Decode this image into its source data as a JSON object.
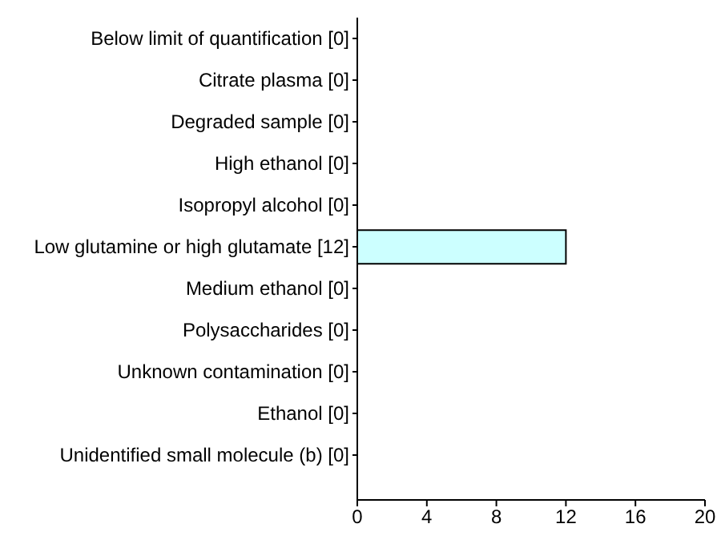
{
  "chart_data": {
    "type": "bar",
    "orientation": "horizontal",
    "categories": [
      "Below limit of quantification [0]",
      "Citrate plasma [0]",
      "Degraded sample [0]",
      "High ethanol [0]",
      "Isopropyl alcohol [0]",
      "Low glutamine or high glutamate [12]",
      "Medium ethanol [0]",
      "Polysaccharides [0]",
      "Unknown contamination [0]",
      "Ethanol [0]",
      "Unidentified small molecule (b) [0]"
    ],
    "values": [
      0,
      0,
      0,
      0,
      0,
      12,
      0,
      0,
      0,
      0,
      0
    ],
    "color": "#ccffff",
    "xlim": [
      0,
      20
    ],
    "xticks": [
      0,
      4,
      8,
      12,
      16,
      20
    ],
    "grid": false
  }
}
